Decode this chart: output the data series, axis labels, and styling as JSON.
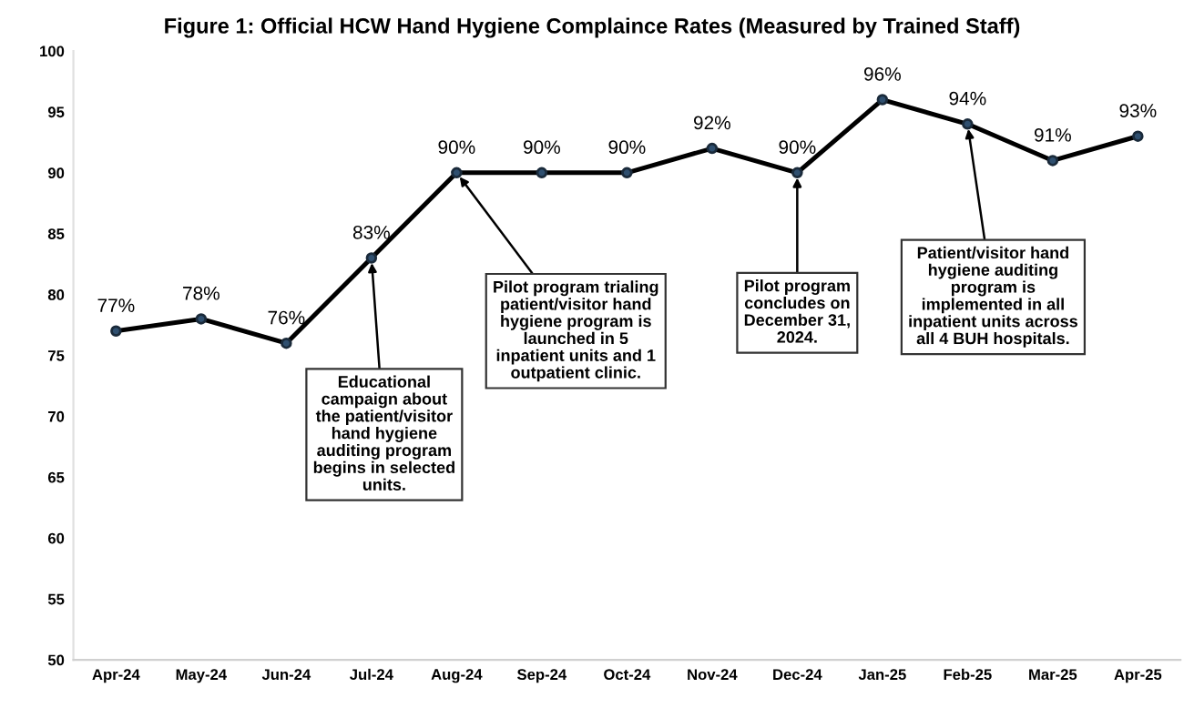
{
  "chart_data": {
    "type": "line",
    "title": "Figure 1: Official HCW Hand Hygiene Complaince Rates (Measured by Trained Staff)",
    "categories": [
      "Apr-24",
      "May-24",
      "Jun-24",
      "Jul-24",
      "Aug-24",
      "Sep-24",
      "Oct-24",
      "Nov-24",
      "Dec-24",
      "Jan-25",
      "Feb-25",
      "Mar-25",
      "Apr-25"
    ],
    "series": [
      {
        "color": "#000000",
        "values": [
          77,
          78,
          76,
          83,
          90,
          90,
          90,
          92,
          90,
          96,
          94,
          91,
          93
        ],
        "value_labels": [
          "77%",
          "78%",
          "76%",
          "83%",
          "90%",
          "90%",
          "90%",
          "92%",
          "90%",
          "96%",
          "94%",
          "91%",
          "93%"
        ]
      }
    ],
    "ylim": [
      50,
      100
    ],
    "yticks": [
      50,
      55,
      60,
      65,
      70,
      75,
      80,
      85,
      90,
      95,
      100
    ],
    "marker": "circle",
    "line_style": "solid",
    "grid": false,
    "legend": false,
    "annotations": [
      {
        "text": "Educational\ncampaign about\nthe patient/visitor\nhand hygiene\nauditing program\nbegins in selected\nunits.",
        "x": "Jul-24",
        "y": 83
      },
      {
        "text": "Pilot program trialing\npatient/visitor hand\nhygiene program is\nlaunched in 5\ninpatient units and 1\noutpatient clinic.",
        "x": "Aug-24",
        "y": 90
      },
      {
        "text": "Pilot program\nconcludes on\nDecember 31,\n2024.",
        "x": "Dec-24",
        "y": 90
      },
      {
        "text": "Patient/visitor hand\nhygiene auditing\nprogram is\nimplemented in all\ninpatient units across\nall 4 BUH hospitals.",
        "x": "Feb-25",
        "y": 94
      }
    ]
  }
}
